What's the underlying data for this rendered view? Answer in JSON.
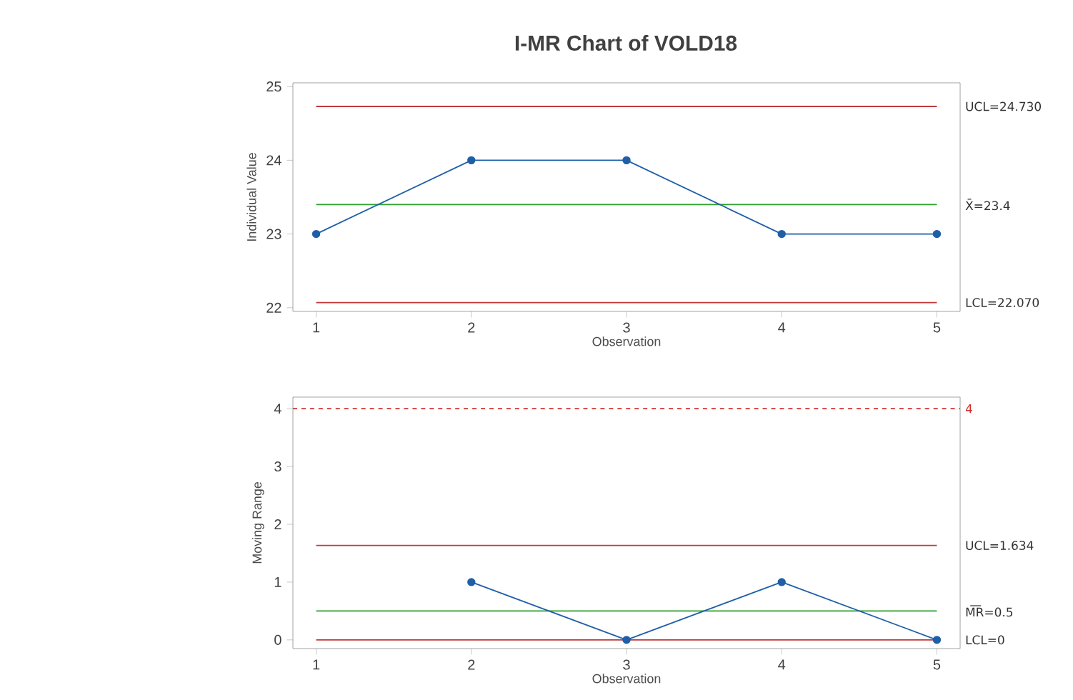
{
  "chart_data": [
    {
      "type": "line",
      "title": "I-MR Chart of VOLD18",
      "xlabel": "Observation",
      "ylabel": "Individual Value",
      "x": [
        1,
        2,
        3,
        4,
        5
      ],
      "xlim": [
        0.85,
        5.15
      ],
      "xticks": [
        1,
        2,
        3,
        4,
        5
      ],
      "ylim": [
        21.95,
        25.05
      ],
      "yticks": [
        22,
        23,
        24,
        25
      ],
      "marker": "circle",
      "series": [
        {
          "color": "#1f5fa8",
          "values": [
            23,
            24,
            24,
            23,
            23
          ]
        }
      ],
      "ref_lines": [
        {
          "axis": "y",
          "value": 24.73,
          "label": "UCL=24.730",
          "color": "#c0393b",
          "line_style": "solid"
        },
        {
          "axis": "y",
          "value": 23.4,
          "label": "X̄=23.4",
          "color": "#2ca02c",
          "line_style": "solid"
        },
        {
          "axis": "y",
          "value": 22.07,
          "label": "LCL=22.070",
          "color": "#c0393b",
          "line_style": "solid"
        }
      ]
    },
    {
      "type": "line",
      "xlabel": "Observation",
      "ylabel": "Moving Range",
      "xlim": [
        0.85,
        5.15
      ],
      "xticks": [
        1,
        2,
        3,
        4,
        5
      ],
      "ylim": [
        -0.15,
        4.2
      ],
      "yticks": [
        0,
        1,
        2,
        3,
        4
      ],
      "marker": "circle",
      "series": [
        {
          "color": "#1f5fa8",
          "x": [
            2,
            3,
            4,
            5
          ],
          "values": [
            1,
            0,
            1,
            0
          ]
        }
      ],
      "ref_lines": [
        {
          "axis": "y",
          "value": 4,
          "label": "4",
          "color": "#d0302f",
          "line_style": "dashed"
        },
        {
          "axis": "y",
          "value": 1.634,
          "label": "UCL=1.634",
          "color": "#c0393b",
          "line_style": "solid"
        },
        {
          "axis": "y",
          "value": 0.5,
          "label": "M͞R=0.5",
          "color": "#2ca02c",
          "line_style": "solid"
        },
        {
          "axis": "y",
          "value": 0,
          "label": "LCL=0",
          "color": "#c0393b",
          "line_style": "solid"
        }
      ]
    }
  ]
}
